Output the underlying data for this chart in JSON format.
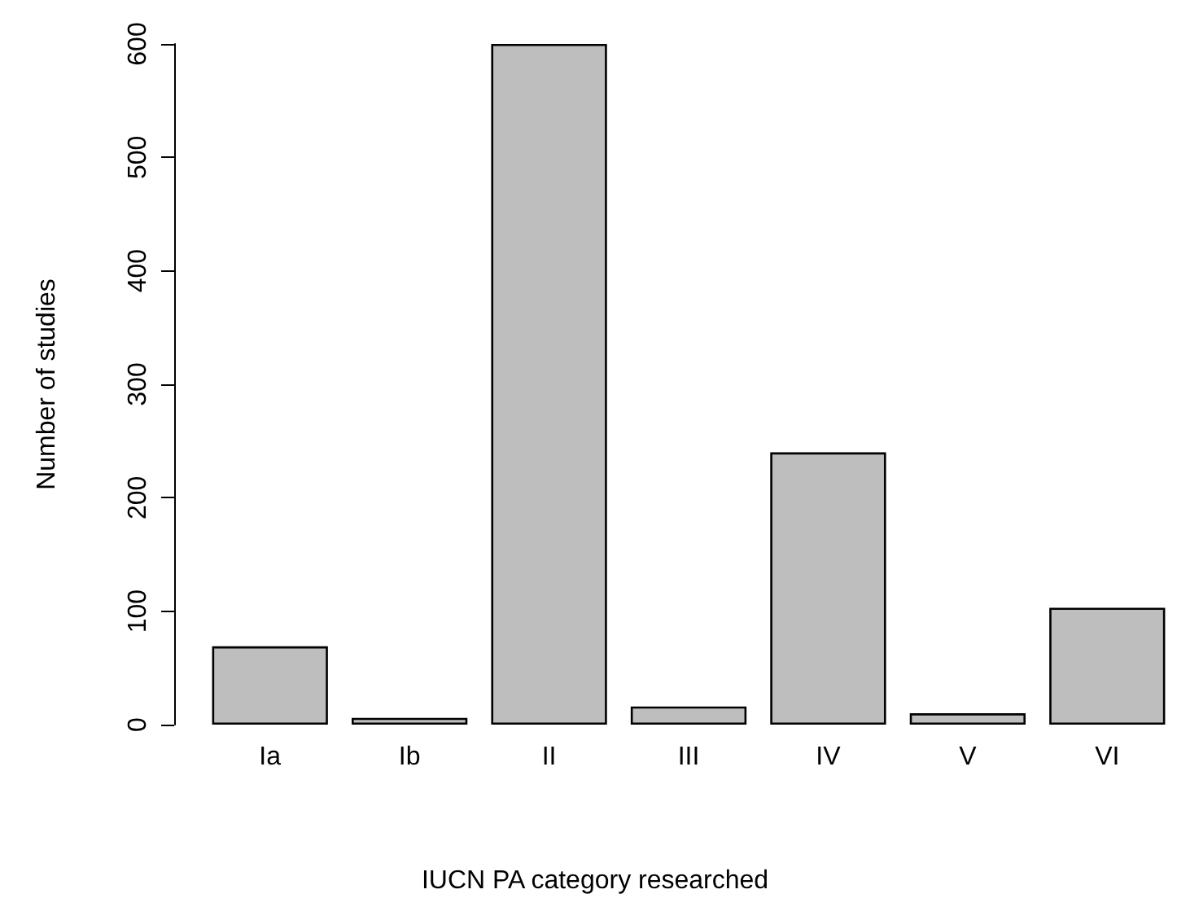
{
  "chart_data": {
    "type": "bar",
    "xlabel": "IUCN PA category researched",
    "ylabel": "Number of studies",
    "categories": [
      "Ia",
      "Ib",
      "II",
      "III",
      "IV",
      "V",
      "VI"
    ],
    "values": [
      69,
      6,
      600,
      16,
      240,
      10,
      103
    ],
    "color": "#bebebe",
    "ylim": [
      0,
      600
    ],
    "yticks": [
      0,
      100,
      200,
      300,
      400,
      500,
      600
    ]
  }
}
